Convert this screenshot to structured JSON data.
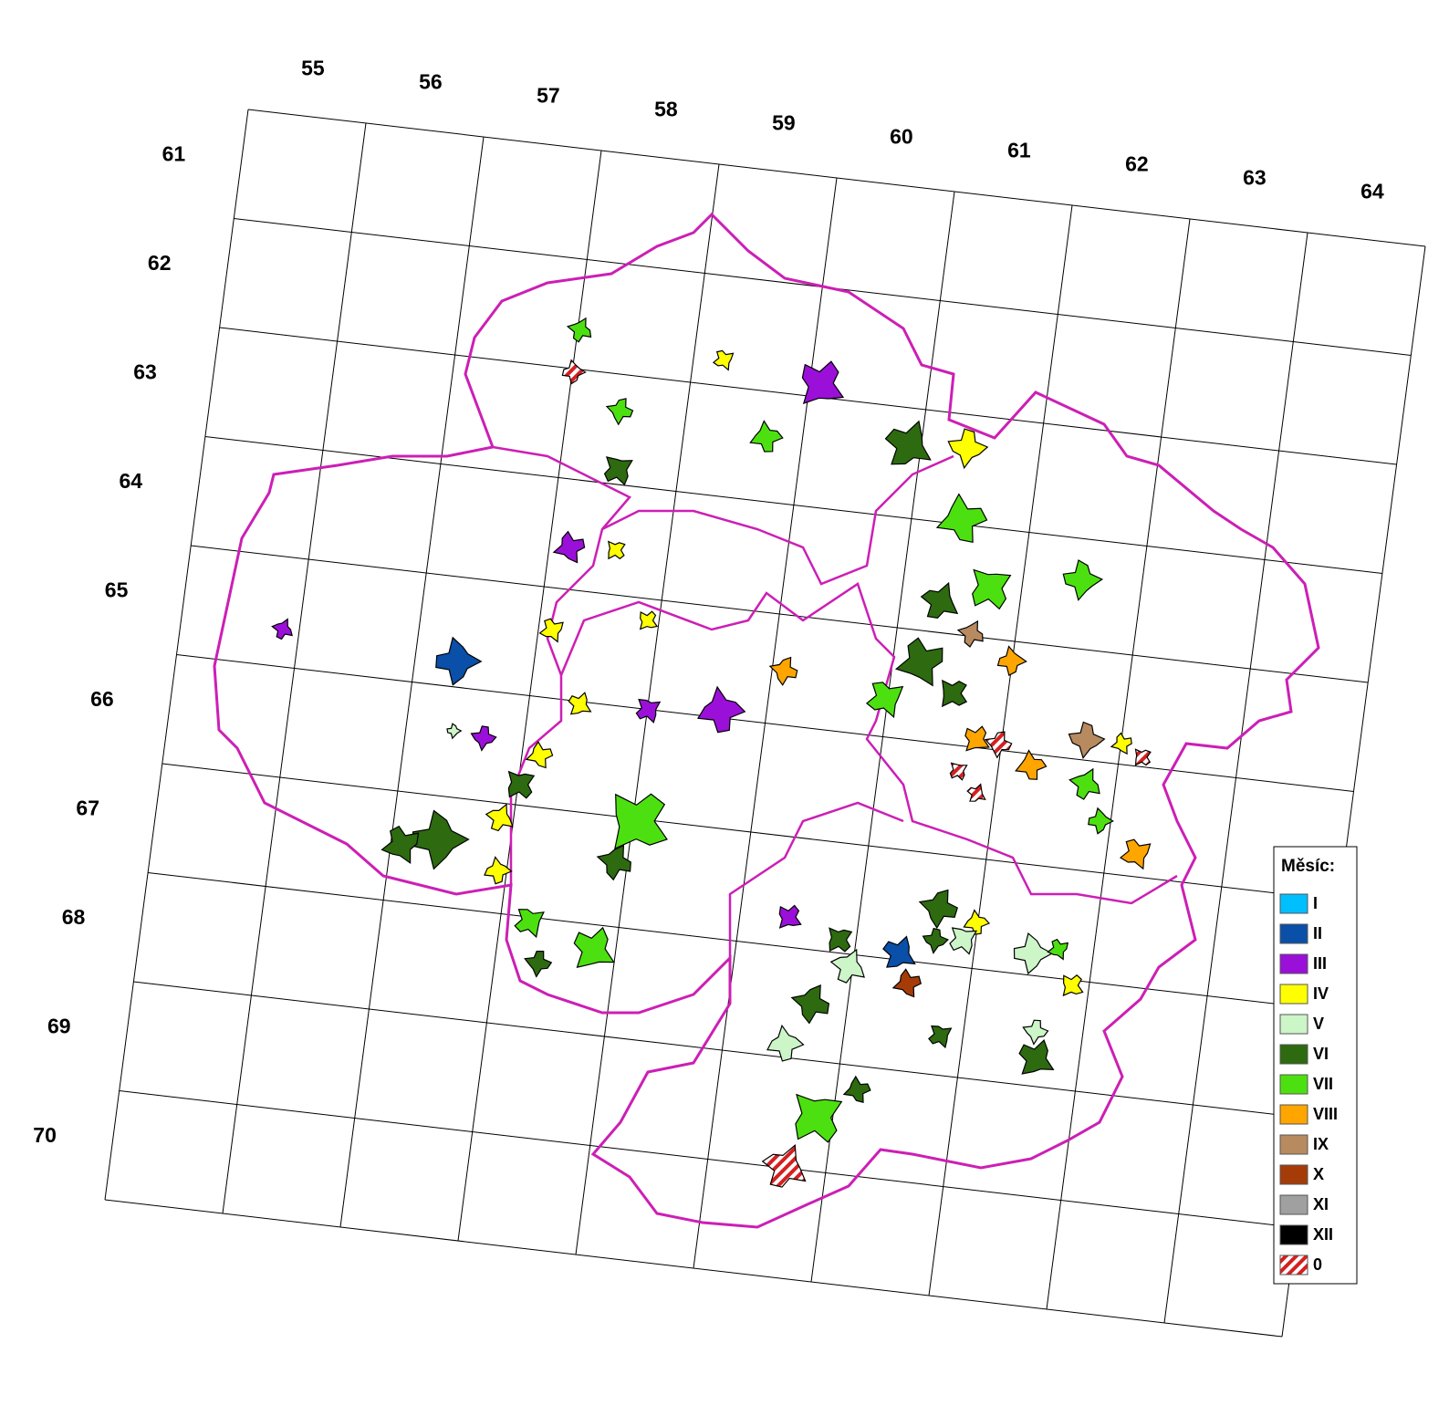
{
  "grid": {
    "column_labels": [
      "55",
      "56",
      "57",
      "58",
      "59",
      "60",
      "61",
      "62",
      "63",
      "64"
    ],
    "row_labels": [
      "61",
      "62",
      "63",
      "64",
      "65",
      "66",
      "67",
      "68",
      "69",
      "70"
    ]
  },
  "legend": {
    "title": "Měsíc:",
    "items": [
      {
        "label": "I",
        "color": "#00bfff"
      },
      {
        "label": "II",
        "color": "#0a4fa8"
      },
      {
        "label": "III",
        "color": "#9b10d8"
      },
      {
        "label": "IV",
        "color": "#ffff00"
      },
      {
        "label": "V",
        "color": "#ccf5c8"
      },
      {
        "label": "VI",
        "color": "#2d6a10"
      },
      {
        "label": "VII",
        "color": "#4de010"
      },
      {
        "label": "VIII",
        "color": "#ffa500"
      },
      {
        "label": "IX",
        "color": "#b88a60"
      },
      {
        "label": "X",
        "color": "#a53c08"
      },
      {
        "label": "XI",
        "color": "#a0a0a0"
      },
      {
        "label": "XII",
        "color": "#000000"
      },
      {
        "label": "0",
        "color": "#d42020",
        "pattern": "hatch"
      }
    ]
  }
}
